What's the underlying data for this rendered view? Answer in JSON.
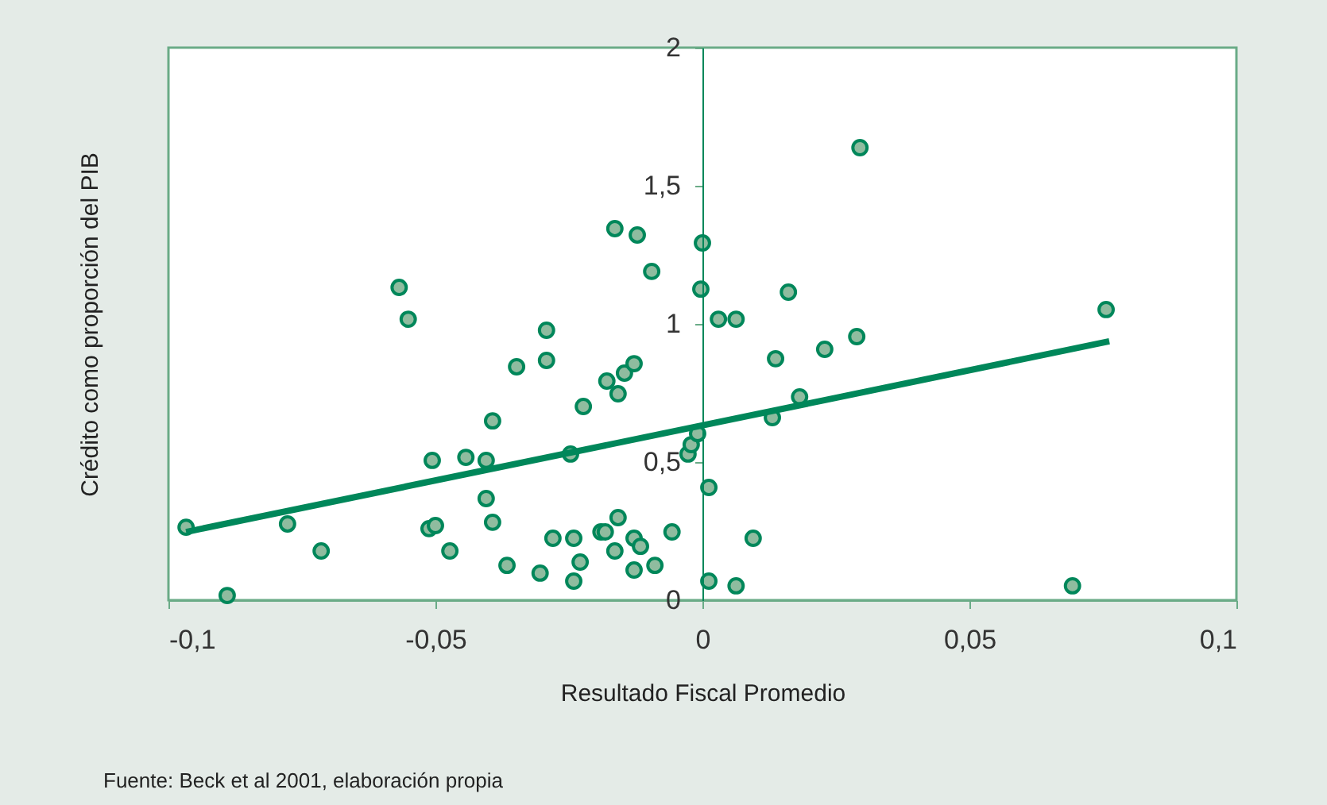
{
  "chart_data": {
    "type": "scatter",
    "xlabel": "Resultado Fiscal Promedio",
    "ylabel": "Crédito como proporción del PIB",
    "annotations": [
      "Fuente: Beck et al 2001, elaboración propia"
    ],
    "xlim": [
      -0.1,
      0.1
    ],
    "ylim": [
      0,
      2
    ],
    "xticks": [
      {
        "value": -0.1,
        "label": "-0,1"
      },
      {
        "value": -0.05,
        "label": "-0,05"
      },
      0,
      {
        "value": 0.05,
        "label": "0,05"
      },
      {
        "value": 0.1,
        "label": "0,1"
      }
    ],
    "yticks": [
      0,
      {
        "value": 0.5,
        "label": "0,5"
      },
      1,
      {
        "value": 1.5,
        "label": "1,5"
      },
      2
    ],
    "grid": false,
    "series": [
      {
        "marker": "circle",
        "color": "#00875a",
        "x": [
          -0.0967,
          -0.089,
          -0.0777,
          -0.0714,
          -0.0568,
          -0.0551,
          -0.0506,
          -0.0512,
          -0.05,
          -0.0473,
          -0.0443,
          -0.0405,
          -0.0405,
          -0.0393,
          -0.0393,
          -0.0366,
          -0.0348,
          -0.0292,
          -0.0292,
          -0.0304,
          -0.028,
          -0.0241,
          -0.0229,
          -0.0241,
          -0.0247,
          -0.0223,
          -0.0164,
          -0.0122,
          -0.0095,
          -0.0179,
          -0.0158,
          -0.0146,
          -0.0128,
          -0.019,
          -0.0182,
          -0.0158,
          -0.0164,
          -0.0128,
          -0.0116,
          -0.0128,
          -0.0089,
          -0.0057,
          0.0,
          -0.0003,
          -0.0027,
          -0.0021,
          -0.0009,
          0.0012,
          0.0012,
          0.003,
          0.0063,
          0.0161,
          0.0137,
          0.0229,
          0.0289,
          0.0295,
          0.0182,
          0.0131,
          0.0095,
          0.0063,
          0.0756,
          0.0693
        ],
        "values": [
          0.264,
          0.017,
          0.276,
          0.178,
          1.132,
          1.017,
          0.506,
          0.259,
          0.27,
          0.178,
          0.517,
          0.506,
          0.368,
          0.282,
          0.649,
          0.126,
          0.845,
          0.977,
          0.868,
          0.098,
          0.224,
          0.224,
          0.138,
          0.069,
          0.529,
          0.701,
          1.345,
          1.322,
          1.19,
          0.793,
          0.747,
          0.822,
          0.856,
          0.247,
          0.247,
          0.299,
          0.178,
          0.224,
          0.195,
          0.109,
          0.126,
          0.247,
          1.293,
          1.126,
          0.529,
          0.563,
          0.603,
          0.408,
          0.069,
          1.017,
          1.017,
          1.115,
          0.874,
          0.908,
          0.954,
          1.638,
          0.736,
          0.661,
          0.224,
          0.052,
          1.052,
          0.052
        ]
      },
      {
        "type": "line",
        "color": "#00875a",
        "x": [
          -0.0967,
          0.0762
        ],
        "values": [
          0.247,
          0.937
        ]
      }
    ]
  }
}
